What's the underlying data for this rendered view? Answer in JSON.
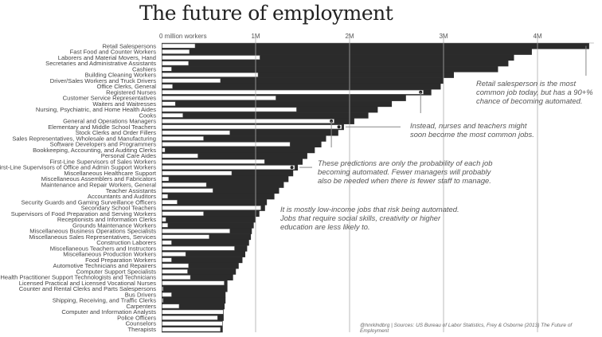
{
  "chart_data": {
    "type": "bar",
    "orientation": "horizontal",
    "title": "The future of employment",
    "axis_label": "0 million workers",
    "ticks": [
      "0 million workers",
      "1M",
      "2M",
      "3M",
      "4M"
    ],
    "tick_values": [
      0,
      1,
      2,
      3,
      4
    ],
    "xlim": [
      0,
      4.6
    ],
    "grid": true,
    "colors": {
      "total": "#2b2b2b",
      "inner": "#ffffff",
      "grid": "#aaaaaa"
    },
    "categories": [
      "Retail Salespersons",
      "Fast Food and Counter Workers",
      "Laborers and Material Movers, Hand",
      "Secretaries and Administrative Assistants",
      "Cashiers",
      "Building Cleaning Workers",
      "Driver/Sales Workers and Truck Drivers",
      "Office Clerks, General",
      "Registered Nurses",
      "Customer Service Representatives",
      "Waiters and Waitresses",
      "Nursing, Psychiatric, and Home Health Aides",
      "Cooks",
      "General and Operations Managers",
      "Elementary and Middle School Teachers",
      "Stock Clerks and Order Fillers",
      "Sales Representatives, Wholesale and Manufacturing",
      "Software Developers and Programmers",
      "Bookkeeping, Accounting, and Auditing Clerks",
      "Personal Care Aides",
      "First-Line Supervisors of Sales Workers",
      "First-Line Supervisors of Office and Admin Support Workers",
      "Miscellaneous Healthcare Support",
      "Miscellaneous Assemblers and Fabricators",
      "Maintenance and Repair Workers, General",
      "Teacher Assistants",
      "Accountants and Auditors",
      "Security Guards and Gaming Surveillance Officers",
      "Secondary School Teachers",
      "Supervisors of Food Preparation and Serving Workers",
      "Receptionists and Information Clerks",
      "Grounds Maintenance Workers",
      "Miscellaneous Business Operations Specialists",
      "Miscellaneous Sales Representatives, Services",
      "Construction Laborers",
      "Miscellaneous Teachers and Instructors",
      "Miscellaneous Production Workers",
      "Food Preparation Workers",
      "Automotive Technicians and Repairers",
      "Computer Support Specialists",
      "Health Practitioner Support Technologists and Technicians",
      "Licensed Practical and Licensed Vocational Nurses",
      "Counter and Rental Clerks and Parts Salespersons",
      "Bus Drivers",
      "Shipping, Receiving, and Traffic Clerks",
      "Carpenters",
      "Computer and Information Analysts",
      "Police Officers",
      "Counselors",
      "Therapists"
    ],
    "series": [
      {
        "key": "total",
        "values": [
          4.55,
          3.94,
          3.75,
          3.69,
          3.58,
          3.11,
          3.0,
          2.97,
          2.87,
          2.6,
          2.45,
          2.3,
          2.2,
          2.05,
          1.94,
          1.88,
          1.75,
          1.7,
          1.63,
          1.55,
          1.5,
          1.45,
          1.4,
          1.35,
          1.3,
          1.25,
          1.2,
          1.12,
          1.1,
          1.04,
          1.0,
          0.98,
          0.96,
          0.95,
          0.93,
          0.91,
          0.89,
          0.86,
          0.82,
          0.79,
          0.76,
          0.7,
          0.7,
          0.68,
          0.68,
          0.67,
          0.66,
          0.66,
          0.65,
          0.65
        ]
      },
      {
        "key": "white",
        "values": [
          0.36,
          0.3,
          1.05,
          0.29,
          0.11,
          1.03,
          0.63,
          0.12,
          2.79,
          1.22,
          0.15,
          1.44,
          0.23,
          1.84,
          1.92,
          0.73,
          0.45,
          1.37,
          0.04,
          0.39,
          1.1,
          1.42,
          0.75,
          0.08,
          0.48,
          0.55,
          0.07,
          0.17,
          1.06,
          0.45,
          0.05,
          0.07,
          0.73,
          0.51,
          0.11,
          0.78,
          0.26,
          0.11,
          0.29,
          0.28,
          0.31,
          0.67,
          0.02,
          0.11,
          0.02,
          0.19,
          0.66,
          0.6,
          0.65,
          0.63
        ]
      }
    ],
    "highlighted": [
      0,
      8,
      13,
      14,
      21
    ]
  },
  "annotations": {
    "retail": "Retail salesperson is the most common job today, but has a 90+% chance of becoming automated.",
    "nurses": "Instead, nurses and teachers might soon become the most common jobs.",
    "managers": "These predictions are only the probability of each job becoming automated. Fewer managers will probably also be needed when there is fewer staff to manage.",
    "lowincome": "It is mostly low-income jobs that risk being automated. Jobs that require social skills, creativity or higher education are less likely to."
  },
  "footer": "@hnrklndbrg | Sources: US Bureau of Labor Statistics, Frey & Osborne (2013) The Future of Employment"
}
